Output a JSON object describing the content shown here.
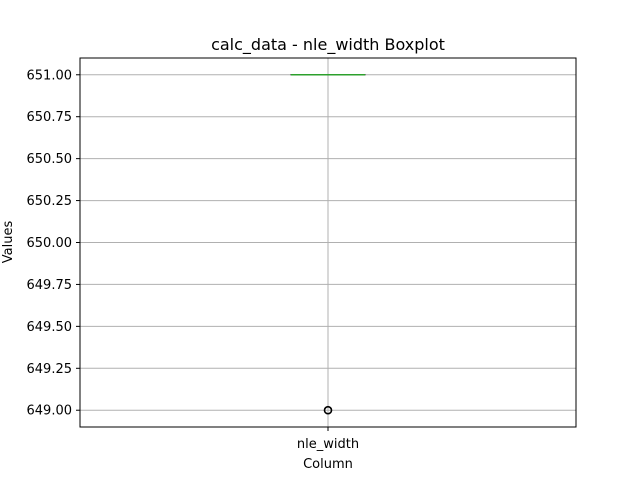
{
  "chart_data": {
    "type": "boxplot",
    "title": "calc_data - nle_width Boxplot",
    "xlabel": "Column",
    "ylabel": "Values",
    "categories": [
      "nle_width"
    ],
    "ylim": [
      648.9,
      651.1
    ],
    "yticks": [
      649.0,
      649.25,
      649.5,
      649.75,
      650.0,
      650.25,
      650.5,
      650.75,
      651.0
    ],
    "ytick_labels": [
      "649.00",
      "649.25",
      "649.50",
      "649.75",
      "650.00",
      "650.25",
      "650.50",
      "650.75",
      "651.00"
    ],
    "grid": true,
    "series": [
      {
        "category": "nle_width",
        "q1": 651.0,
        "median": 651.0,
        "q3": 651.0,
        "whisker_low": 651.0,
        "whisker_high": 651.0,
        "outliers": [
          649.0
        ]
      }
    ],
    "colors": {
      "box": "#000000",
      "median": "#2ca02c",
      "grid": "#b0b0b0",
      "axes": "#000000"
    }
  }
}
